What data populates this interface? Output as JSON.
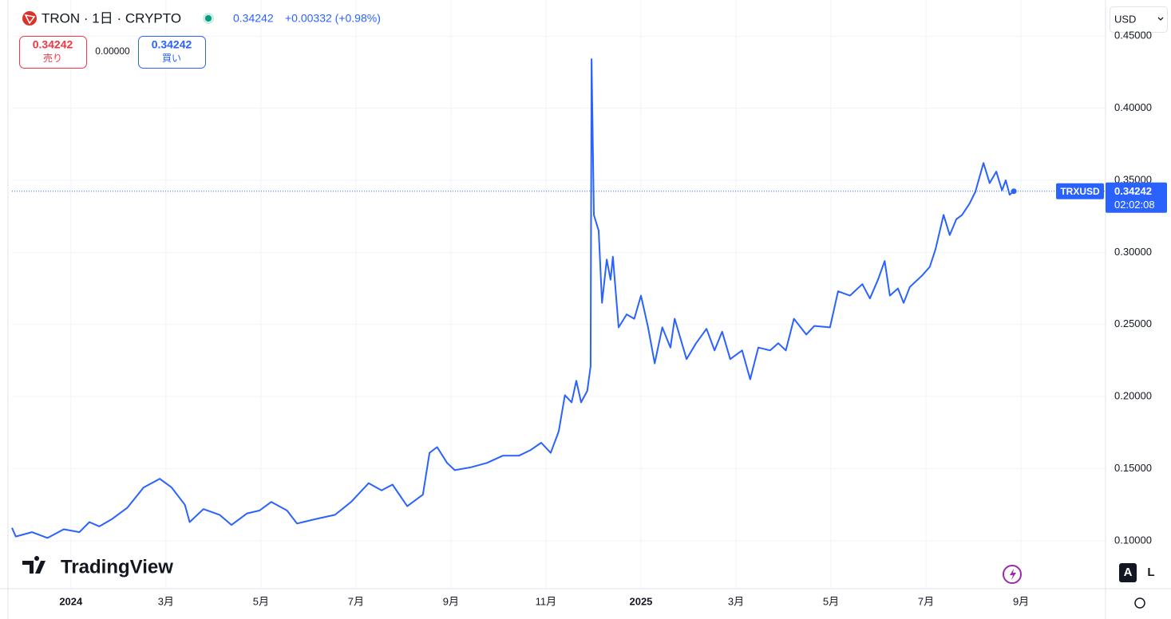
{
  "chart_data": {
    "type": "line",
    "symbol_title": "TRON · 1日 · CRYPTO",
    "last_price": 0.34242,
    "change_text": "+0.00332 (+0.98%)",
    "sell_label": "売り",
    "buy_label": "買い",
    "spread": "0.00000",
    "currency": "USD",
    "ticker": "TRXUSD",
    "countdown": "02:02:08",
    "brand": "TradingView",
    "auto_button": "A",
    "log_button": "L",
    "x": [
      -1.24,
      -1.16,
      -0.82,
      -0.49,
      -0.15,
      0.18,
      0.39,
      0.6,
      0.86,
      1.19,
      1.53,
      1.87,
      2.12,
      2.4,
      2.5,
      2.79,
      3.13,
      3.38,
      3.71,
      3.97,
      4.22,
      4.55,
      4.76,
      5.14,
      5.56,
      5.9,
      6.27,
      6.54,
      6.77,
      7.08,
      7.41,
      7.55,
      7.71,
      7.92,
      8.08,
      8.42,
      8.76,
      9.09,
      9.43,
      9.68,
      9.9,
      10.1,
      10.27,
      10.4,
      10.54,
      10.64,
      10.74,
      10.87,
      10.94,
      10.96,
      11.01,
      11.11,
      11.18,
      11.28,
      11.36,
      11.41,
      11.53,
      11.7,
      11.86,
      12.0,
      12.15,
      12.29,
      12.45,
      12.62,
      12.71,
      12.96,
      13.16,
      13.38,
      13.55,
      13.71,
      13.88,
      14.13,
      14.3,
      14.47,
      14.72,
      14.89,
      15.05,
      15.22,
      15.48,
      15.65,
      15.98,
      16.15,
      16.4,
      16.66,
      16.82,
      16.99,
      17.13,
      17.24,
      17.41,
      17.53,
      17.66,
      17.92,
      18.08,
      18.2,
      18.37,
      18.5,
      18.64,
      18.76,
      18.92,
      19.04,
      19.21,
      19.34,
      19.48,
      19.6,
      19.68,
      19.76,
      19.85
    ],
    "series": [
      {
        "name": "TRXUSD",
        "color": "#2962ff",
        "values": [
          0.109,
          0.103,
          0.106,
          0.102,
          0.108,
          0.106,
          0.113,
          0.11,
          0.115,
          0.123,
          0.137,
          0.143,
          0.137,
          0.125,
          0.113,
          0.122,
          0.118,
          0.111,
          0.119,
          0.121,
          0.127,
          0.121,
          0.112,
          0.115,
          0.118,
          0.127,
          0.14,
          0.135,
          0.139,
          0.124,
          0.132,
          0.161,
          0.165,
          0.154,
          0.149,
          0.151,
          0.154,
          0.159,
          0.159,
          0.163,
          0.168,
          0.161,
          0.176,
          0.201,
          0.196,
          0.211,
          0.196,
          0.204,
          0.221,
          0.434,
          0.326,
          0.315,
          0.265,
          0.295,
          0.281,
          0.297,
          0.248,
          0.257,
          0.254,
          0.27,
          0.248,
          0.223,
          0.248,
          0.234,
          0.254,
          0.226,
          0.237,
          0.247,
          0.232,
          0.245,
          0.226,
          0.232,
          0.212,
          0.234,
          0.232,
          0.237,
          0.232,
          0.254,
          0.243,
          0.249,
          0.248,
          0.273,
          0.27,
          0.278,
          0.268,
          0.281,
          0.294,
          0.27,
          0.275,
          0.265,
          0.276,
          0.284,
          0.29,
          0.302,
          0.326,
          0.312,
          0.323,
          0.326,
          0.334,
          0.342,
          0.362,
          0.348,
          0.356,
          0.343,
          0.35,
          0.34,
          0.34242
        ]
      }
    ],
    "xlim": [
      -1.24,
      21.78
    ],
    "xticks": [
      {
        "value": 0,
        "label": "2024"
      },
      {
        "value": 2,
        "label": "3月"
      },
      {
        "value": 4,
        "label": "5月"
      },
      {
        "value": 6,
        "label": "7月"
      },
      {
        "value": 8,
        "label": "9月"
      },
      {
        "value": 10,
        "label": "11月"
      },
      {
        "value": 12,
        "label": "2025"
      },
      {
        "value": 14,
        "label": "3月"
      },
      {
        "value": 16,
        "label": "5月"
      },
      {
        "value": 18,
        "label": "7月"
      },
      {
        "value": 20,
        "label": "9月"
      }
    ],
    "ylim": [
      0.0668,
      0.475
    ],
    "yticks": [
      {
        "value": 0.1,
        "label": "0.10000"
      },
      {
        "value": 0.15,
        "label": "0.15000"
      },
      {
        "value": 0.2,
        "label": "0.20000"
      },
      {
        "value": 0.25,
        "label": "0.25000"
      },
      {
        "value": 0.3,
        "label": "0.30000"
      },
      {
        "value": 0.35,
        "label": "0.35000"
      },
      {
        "value": 0.4,
        "label": "0.40000"
      },
      {
        "value": 0.45,
        "label": "0.45000"
      }
    ],
    "grid": true
  }
}
